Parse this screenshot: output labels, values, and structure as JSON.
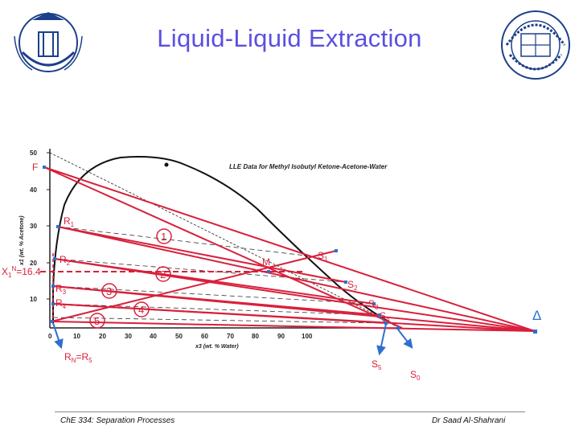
{
  "slide": {
    "title": "Liquid-Liquid Extraction",
    "footer_left": "ChE 334: Separation Processes",
    "footer_right": "Dr Saad Al-Shahrani"
  },
  "diagram": {
    "chart_title": "LLE Data for Methyl Isobutyl Ketone-Acetone-Water",
    "x_label": "x3 (wt. % Water)",
    "y_label": "x1 (wt. % Acetone)",
    "x_ticks": [
      "0",
      "10",
      "20",
      "30",
      "40",
      "50",
      "60",
      "70",
      "80",
      "90",
      "100"
    ],
    "y_ticks": [
      "50",
      "40",
      "30",
      "20",
      "10"
    ],
    "labels": {
      "F": "F",
      "R1": "R",
      "R1_sub": "1",
      "R2": "R",
      "R2_sub": "2",
      "R3": "R",
      "R3_sub": "3",
      "R4": "R",
      "R4_sub": "4",
      "RN": "R",
      "RN_sub": "N",
      "RN_eq": "=R",
      "RN_eq_sub": "5",
      "XN": "X",
      "XN_sub": "1",
      "XN_sup": "N",
      "XN_val": "=16.4",
      "M": "M",
      "S1": "S",
      "S1_sub": "1",
      "S2": "S",
      "S2_sub": "2",
      "S3": "S",
      "S3_sub": "3",
      "S4": "S",
      "S4_sub": "4",
      "S5": "S",
      "S5_sub": "5",
      "S0": "S",
      "S0_sub": "0",
      "Delta": "Δ"
    },
    "stages": [
      "1",
      "2",
      "3",
      "4",
      "5"
    ],
    "colors": {
      "construction": "#d8203c",
      "curve": "#111111",
      "marker": "#2e6fd0",
      "title": "#5b4fe0"
    }
  }
}
